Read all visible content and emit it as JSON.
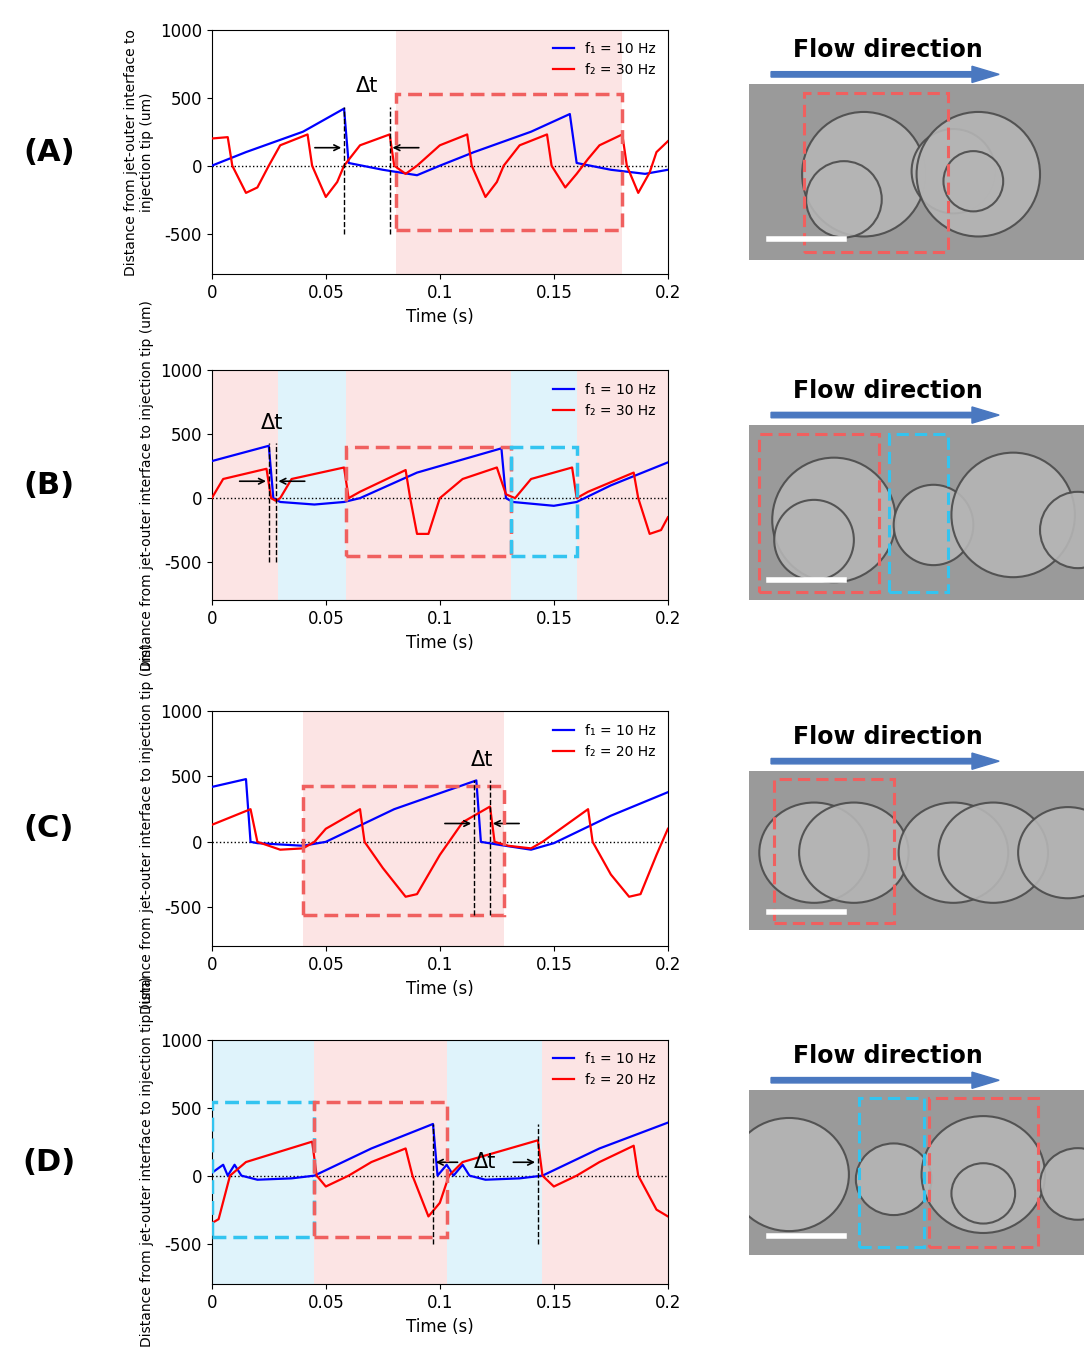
{
  "chart_data": [
    {
      "type": "line",
      "panel_label": "(A)",
      "xlabel": "Time (s)",
      "ylabel": "Distance from jet-outer interface to injection tip (um)",
      "xlim": [
        0,
        0.2
      ],
      "ylim": [
        -800,
        1000
      ],
      "xticks": [
        0,
        0.05,
        0.1,
        0.15,
        0.2
      ],
      "yticks": [
        -500,
        0,
        500,
        1000
      ],
      "legend": "upper right",
      "hline": 0,
      "series": [
        {
          "name": "f₁ = 10 Hz",
          "color": "#0000ff",
          "x": [
            0,
            0.015,
            0.04,
            0.058,
            0.06,
            0.075,
            0.09,
            0.1,
            0.115,
            0.14,
            0.157,
            0.16,
            0.175,
            0.19,
            0.2
          ],
          "values": [
            0,
            100,
            250,
            420,
            20,
            -30,
            -70,
            0,
            100,
            250,
            380,
            20,
            -30,
            -60,
            -30
          ]
        },
        {
          "name": "f₂ = 30 Hz",
          "color": "#ff0000",
          "x": [
            0,
            0.007,
            0.009,
            0.015,
            0.02,
            0.025,
            0.03,
            0.042,
            0.044,
            0.05,
            0.055,
            0.058,
            0.065,
            0.078,
            0.08,
            0.085,
            0.09,
            0.1,
            0.112,
            0.114,
            0.12,
            0.125,
            0.128,
            0.135,
            0.147,
            0.149,
            0.155,
            0.16,
            0.165,
            0.17,
            0.18,
            0.182,
            0.187,
            0.192,
            0.195,
            0.2
          ],
          "values": [
            200,
            210,
            0,
            -200,
            -160,
            0,
            150,
            230,
            0,
            -230,
            -120,
            0,
            150,
            230,
            0,
            -60,
            0,
            150,
            230,
            0,
            -230,
            -120,
            0,
            150,
            230,
            0,
            -160,
            -60,
            50,
            150,
            230,
            0,
            -200,
            -50,
            100,
            180
          ]
        }
      ],
      "shaded": [
        {
          "x": [
            0.081,
            0.18
          ],
          "color": "#fce4e4"
        }
      ],
      "boxes": [
        {
          "x": [
            0.081,
            0.18
          ],
          "y": [
            -470,
            530
          ],
          "color": "#f0605f"
        }
      ],
      "delta_t": {
        "label": "Δt",
        "x": [
          0.058,
          0.078
        ],
        "y": [
          -500,
          430
        ]
      },
      "image_caption": "Flow direction"
    },
    {
      "type": "line",
      "panel_label": "(B)",
      "xlabel": "Time (s)",
      "ylabel": "Distance from jet-outer interface to injection tip (um)",
      "xlim": [
        0,
        0.2
      ],
      "ylim": [
        -800,
        1000
      ],
      "xticks": [
        0,
        0.05,
        0.1,
        0.15,
        0.2
      ],
      "yticks": [
        -500,
        0,
        500,
        1000
      ],
      "legend": "upper right",
      "hline": 0,
      "series": [
        {
          "name": "f₁ = 10 Hz",
          "color": "#0000ff",
          "x": [
            0,
            0.025,
            0.027,
            0.03,
            0.045,
            0.058,
            0.065,
            0.09,
            0.127,
            0.129,
            0.132,
            0.15,
            0.16,
            0.175,
            0.2
          ],
          "values": [
            290,
            410,
            0,
            -30,
            -50,
            -30,
            0,
            200,
            390,
            0,
            -30,
            -60,
            -30,
            100,
            280
          ]
        },
        {
          "name": "f₂ = 30 Hz",
          "color": "#ff0000",
          "x": [
            0,
            0.005,
            0.024,
            0.026,
            0.028,
            0.03,
            0.035,
            0.058,
            0.06,
            0.065,
            0.085,
            0.087,
            0.09,
            0.095,
            0.1,
            0.11,
            0.125,
            0.129,
            0.133,
            0.14,
            0.158,
            0.16,
            0.165,
            0.185,
            0.187,
            0.192,
            0.197,
            0.2
          ],
          "values": [
            0,
            150,
            230,
            0,
            -20,
            0,
            150,
            240,
            0,
            50,
            220,
            0,
            -280,
            -280,
            0,
            150,
            240,
            30,
            0,
            150,
            240,
            0,
            50,
            200,
            0,
            -280,
            -250,
            -150
          ]
        }
      ],
      "shaded": [
        {
          "x": [
            0,
            0.029
          ],
          "color": "#fce4e4"
        },
        {
          "x": [
            0.029,
            0.059
          ],
          "color": "#dff3fb"
        },
        {
          "x": [
            0.059,
            0.131
          ],
          "color": "#fce4e4"
        },
        {
          "x": [
            0.131,
            0.16
          ],
          "color": "#dff3fb"
        },
        {
          "x": [
            0.16,
            0.2
          ],
          "color": "#fce4e4"
        }
      ],
      "boxes": [
        {
          "x": [
            0.059,
            0.131
          ],
          "y": [
            -450,
            400
          ],
          "color": "#f0605f"
        },
        {
          "x": [
            0.131,
            0.16
          ],
          "y": [
            -450,
            400
          ],
          "color": "#33c4f0"
        }
      ],
      "delta_t": {
        "label": "Δt",
        "x": [
          0.025,
          0.028
        ],
        "y": [
          -500,
          430
        ]
      },
      "image_caption": "Flow direction"
    },
    {
      "type": "line",
      "panel_label": "(C)",
      "xlabel": "Time (s)",
      "ylabel": "Distance from jet-outer interface to injection tip (um)",
      "xlim": [
        0,
        0.2
      ],
      "ylim": [
        -800,
        1000
      ],
      "xticks": [
        0,
        0.05,
        0.1,
        0.15,
        0.2
      ],
      "yticks": [
        -500,
        0,
        500,
        1000
      ],
      "legend": "upper right",
      "hline": 0,
      "series": [
        {
          "name": "f₁ = 10 Hz",
          "color": "#0000ff",
          "x": [
            0,
            0.015,
            0.017,
            0.02,
            0.03,
            0.04,
            0.05,
            0.08,
            0.116,
            0.118,
            0.125,
            0.14,
            0.15,
            0.175,
            0.2
          ],
          "values": [
            420,
            480,
            0,
            -10,
            -20,
            -30,
            0,
            250,
            470,
            0,
            -20,
            -60,
            -10,
            200,
            380
          ]
        },
        {
          "name": "f₂ = 20 Hz",
          "color": "#ff0000",
          "x": [
            0,
            0.017,
            0.02,
            0.03,
            0.04,
            0.045,
            0.05,
            0.065,
            0.067,
            0.075,
            0.085,
            0.09,
            0.1,
            0.104,
            0.11,
            0.122,
            0.124,
            0.13,
            0.14,
            0.145,
            0.165,
            0.167,
            0.175,
            0.183,
            0.188,
            0.195,
            0.2
          ],
          "values": [
            130,
            250,
            0,
            -60,
            -50,
            0,
            100,
            250,
            0,
            -200,
            -420,
            -400,
            -100,
            0,
            150,
            270,
            0,
            -30,
            -50,
            0,
            250,
            0,
            -250,
            -420,
            -400,
            -100,
            100
          ]
        }
      ],
      "shaded": [
        {
          "x": [
            0.04,
            0.128
          ],
          "color": "#fce4e4"
        }
      ],
      "boxes": [
        {
          "x": [
            0.04,
            0.128
          ],
          "y": [
            -560,
            430
          ],
          "color": "#f0605f"
        }
      ],
      "delta_t": {
        "label": "Δt",
        "x": [
          0.115,
          0.122
        ],
        "y": [
          -560,
          470
        ]
      },
      "image_caption": "Flow direction"
    },
    {
      "type": "line",
      "panel_label": "(D)",
      "xlabel": "Time (s)",
      "ylabel": "Distance from jet-outer interface to injection tip (um)",
      "xlim": [
        0,
        0.2
      ],
      "ylim": [
        -800,
        1000
      ],
      "xticks": [
        0,
        0.05,
        0.1,
        0.15,
        0.2
      ],
      "yticks": [
        -500,
        0,
        500,
        1000
      ],
      "legend": "upper right",
      "hline": 0,
      "series": [
        {
          "name": "f₁ = 10 Hz",
          "color": "#0000ff",
          "x": [
            0,
            0.005,
            0.007,
            0.01,
            0.013,
            0.02,
            0.035,
            0.045,
            0.07,
            0.097,
            0.099,
            0.103,
            0.106,
            0.11,
            0.113,
            0.12,
            0.135,
            0.145,
            0.17,
            0.2
          ],
          "values": [
            20,
            80,
            0,
            80,
            0,
            -30,
            -20,
            0,
            200,
            380,
            0,
            80,
            0,
            80,
            0,
            -30,
            -20,
            0,
            200,
            390
          ]
        },
        {
          "name": "f₂ = 20 Hz",
          "color": "#ff0000",
          "x": [
            0,
            0.003,
            0.008,
            0.015,
            0.044,
            0.046,
            0.05,
            0.06,
            0.07,
            0.085,
            0.088,
            0.095,
            0.1,
            0.104,
            0.11,
            0.143,
            0.145,
            0.15,
            0.16,
            0.17,
            0.185,
            0.187,
            0.195,
            0.2
          ],
          "values": [
            -350,
            -320,
            0,
            100,
            250,
            0,
            -80,
            0,
            100,
            200,
            0,
            -300,
            -200,
            0,
            100,
            260,
            0,
            -80,
            0,
            100,
            220,
            0,
            -250,
            -300
          ]
        }
      ],
      "shaded": [
        {
          "x": [
            0,
            0.045
          ],
          "color": "#dff3fb"
        },
        {
          "x": [
            0.045,
            0.103
          ],
          "color": "#fce4e4"
        },
        {
          "x": [
            0.103,
            0.145
          ],
          "color": "#dff3fb"
        },
        {
          "x": [
            0.145,
            0.2
          ],
          "color": "#fce4e4"
        }
      ],
      "boxes": [
        {
          "x": [
            0,
            0.045
          ],
          "y": [
            -450,
            540
          ],
          "color": "#33c4f0"
        },
        {
          "x": [
            0.045,
            0.103
          ],
          "y": [
            -450,
            540
          ],
          "color": "#f0605f"
        }
      ],
      "delta_t": {
        "label": "Δt",
        "x": [
          0.097,
          0.143
        ],
        "y": [
          -500,
          380
        ]
      },
      "image_caption": "Flow direction"
    }
  ]
}
